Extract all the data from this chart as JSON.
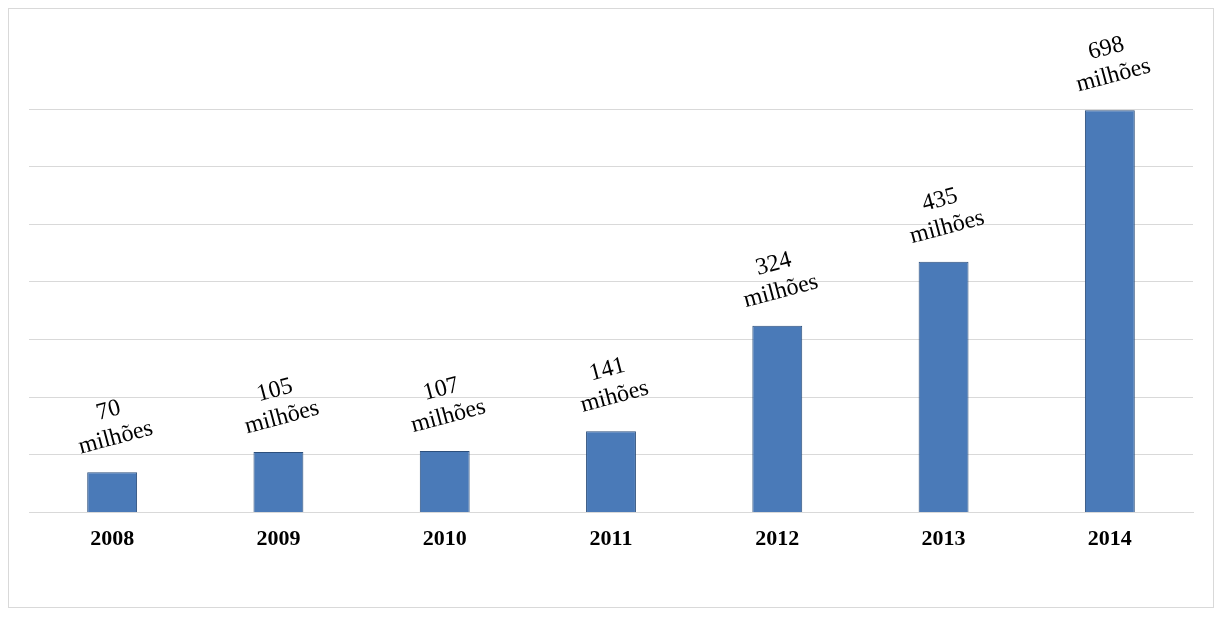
{
  "chart_data": {
    "type": "bar",
    "categories": [
      "2008",
      "2009",
      "2010",
      "2011",
      "2012",
      "2013",
      "2014"
    ],
    "values": [
      70,
      105,
      107,
      141,
      324,
      435,
      698
    ],
    "value_labels": [
      "70 milhões",
      "105 milhões",
      "107 milhões",
      "141 mihões",
      "324 milhões",
      "435 milhões",
      "698 milhões"
    ],
    "color": "#4a7ab8",
    "ylim": [
      0,
      700
    ],
    "tick_labels": "x",
    "grid": "y",
    "legend": false
  }
}
